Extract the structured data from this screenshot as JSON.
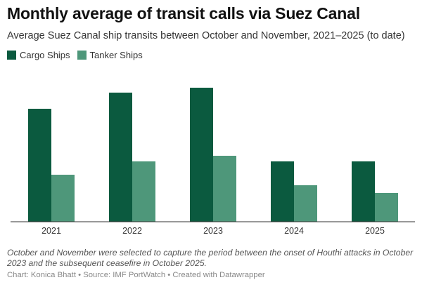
{
  "header": {
    "title": "Monthly average of transit calls via Suez Canal",
    "subtitle": "Average Suez Canal ship transits between October and November, 2021–2025 (to date)"
  },
  "legend": [
    {
      "label": "Cargo Ships",
      "color": "#0b5a3f"
    },
    {
      "label": "Tanker Ships",
      "color": "#4e977a"
    }
  ],
  "chart_data": {
    "type": "bar",
    "title": "Monthly average of transit calls via Suez Canal",
    "subtitle": "Average Suez Canal ship transits between October and November, 2021–2025 (to date)",
    "categories": [
      "2021",
      "2022",
      "2023",
      "2024",
      "2025"
    ],
    "series": [
      {
        "name": "Cargo Ships",
        "color": "#0b5a3f",
        "values": [
          161,
          184,
          191,
          86,
          86
        ]
      },
      {
        "name": "Tanker Ships",
        "color": "#4e977a",
        "values": [
          67,
          86,
          94,
          52,
          41
        ]
      }
    ],
    "xlabel": "",
    "ylabel": "",
    "ylim": [
      0,
      200
    ],
    "grid": false,
    "y_axis_shown": false,
    "values_note": "relative estimates; no y-axis or value labels shown",
    "legend_position": "top-left"
  },
  "footer": {
    "note": "October and November were selected to capture the period between the onset of Houthi attacks in October 2023 and the subsequent ceasefire in October 2025.",
    "credit": "Chart: Konica Bhatt • Source: IMF PortWatch • Created with Datawrapper"
  }
}
